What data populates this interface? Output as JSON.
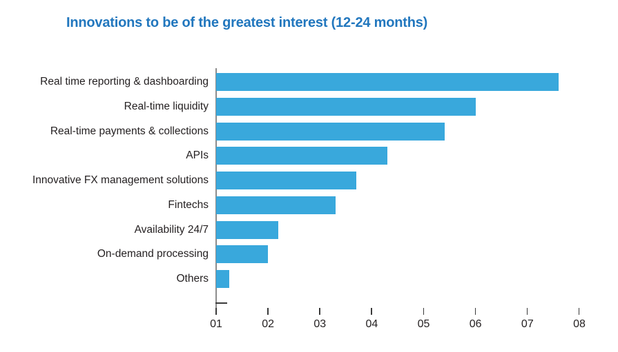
{
  "chart_data": {
    "type": "bar",
    "orientation": "horizontal",
    "title": "Innovations to be of the greatest interest (12-24 months)",
    "categories": [
      "Real time reporting & dashboarding",
      "Real-time liquidity",
      "Real-time payments & collections",
      "APIs",
      "Innovative FX management solutions",
      "Fintechs",
      "Availability 24/7",
      "On-demand processing",
      "Others"
    ],
    "values": [
      7.6,
      6.0,
      5.4,
      4.3,
      3.7,
      3.3,
      2.2,
      2.0,
      1.25
    ],
    "x_tick_labels": [
      "01",
      "02",
      "03",
      "04",
      "05",
      "06",
      "07",
      "08"
    ],
    "x_tick_values": [
      1,
      2,
      3,
      4,
      5,
      6,
      7,
      8
    ],
    "xlim": [
      1,
      8
    ],
    "bars_start_at_axis_value": 1,
    "xlabel": "",
    "ylabel": "",
    "grid": false,
    "legend_position": "none",
    "colors": {
      "bar": "#39A8DC",
      "title": "#2277BE",
      "category_text": "#231F20",
      "tick_text": "#231F20",
      "axis_line": "#8C8C8C",
      "tick_mark": "#3A3A3A"
    }
  }
}
